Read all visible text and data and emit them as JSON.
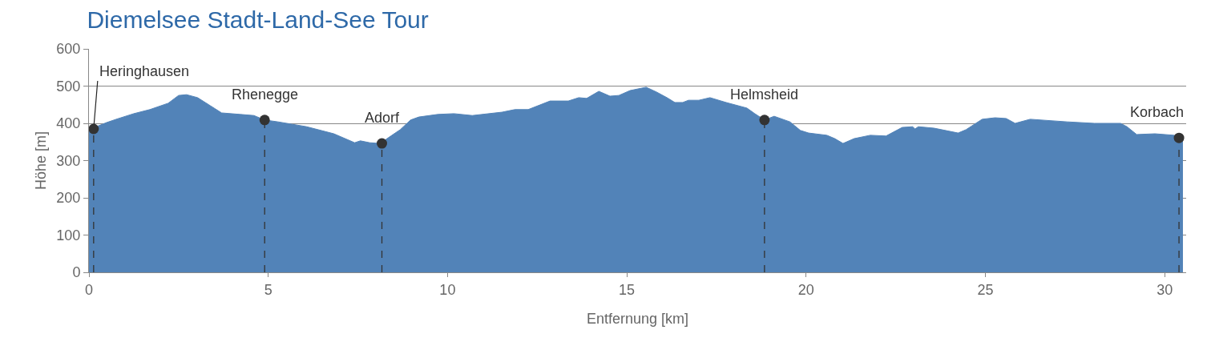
{
  "chart_data": {
    "type": "area",
    "title": "Diemelsee Stadt-Land-See Tour",
    "xlabel": "Entfernung [km]",
    "ylabel": "Höhe [m]",
    "xlim": [
      0,
      30.6
    ],
    "xticks": [
      0,
      5,
      10,
      15,
      20,
      25,
      30
    ],
    "ylim": [
      0,
      600
    ],
    "yticks": [
      0,
      100,
      200,
      300,
      400,
      500,
      600
    ],
    "grid": "y",
    "series": [
      {
        "color": "#5283b8",
        "x": [
          0,
          0.49,
          0.76,
          1.25,
          1.7,
          2.21,
          2.5,
          2.72,
          3.03,
          3.39,
          3.7,
          4.22,
          4.6,
          4.9,
          5.27,
          6.07,
          6.83,
          7.41,
          7.57,
          7.83,
          8.12,
          8.42,
          8.68,
          8.97,
          9.2,
          9.73,
          10.18,
          10.69,
          11.52,
          11.88,
          12.25,
          12.86,
          13.37,
          13.66,
          13.88,
          14.22,
          14.53,
          14.78,
          15.09,
          15.54,
          15.83,
          16.12,
          16.34,
          16.56,
          16.72,
          17.01,
          17.32,
          17.77,
          18.35,
          18.57,
          18.84,
          19.11,
          19.55,
          19.84,
          20.07,
          20.58,
          20.8,
          21.03,
          21.34,
          21.79,
          22.23,
          22.68,
          22.97,
          23.04,
          23.13,
          23.57,
          24.24,
          24.46,
          24.91,
          25.27,
          25.58,
          25.83,
          26.25,
          27.28,
          28.04,
          28.77,
          28.95,
          29.22,
          29.73,
          30.27,
          30.4,
          30.51
        ],
        "values": [
          383,
          402,
          411,
          426,
          437,
          454,
          475,
          477,
          469,
          447,
          428,
          424,
          421,
          409,
          404,
          391,
          372,
          348,
          353,
          348,
          346,
          366,
          383,
          409,
          417,
          424,
          426,
          421,
          430,
          437,
          437,
          460,
          460,
          469,
          467,
          486,
          473,
          475,
          488,
          497,
          484,
          469,
          456,
          456,
          462,
          462,
          469,
          456,
          441,
          426,
          409,
          419,
          404,
          381,
          374,
          368,
          359,
          346,
          359,
          368,
          366,
          389,
          391,
          385,
          391,
          387,
          374,
          383,
          411,
          415,
          413,
          400,
          411,
          404,
          400,
          400,
          391,
          370,
          372,
          368,
          361,
          358
        ]
      },
      {
        "type": "lollipop",
        "color": "#333333",
        "marker": "circle",
        "x": [
          0.13,
          4.9,
          8.17,
          18.84,
          30.4
        ],
        "values": [
          385,
          409,
          346,
          409,
          361
        ]
      }
    ],
    "annotations": [
      {
        "text": "Heringhausen",
        "x": 0.13,
        "y": 385
      },
      {
        "text": "Rhenegge",
        "x": 4.9,
        "y": 409
      },
      {
        "text": "Adorf",
        "x": 8.17,
        "y": 346
      },
      {
        "text": "Helmsheid",
        "x": 18.84,
        "y": 409
      },
      {
        "text": "Korbach",
        "x": 30.4,
        "y": 361
      }
    ]
  }
}
